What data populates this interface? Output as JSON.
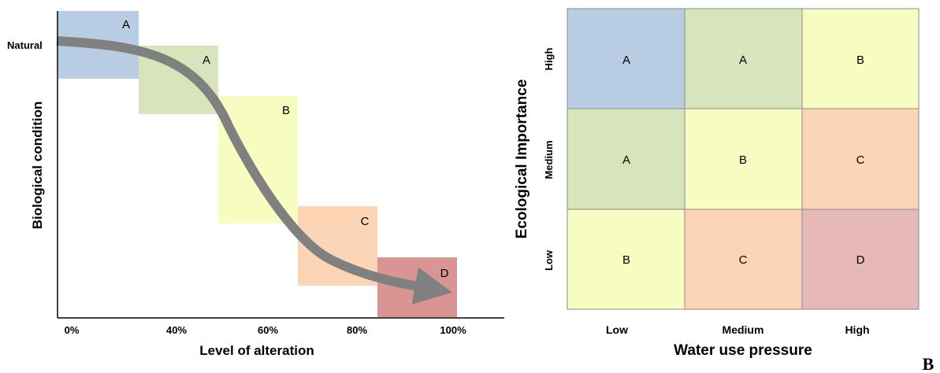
{
  "colors": {
    "A_dark": "#b8cce4",
    "A_light": "#d8e4bc",
    "B": "#f7fdc1",
    "C": "#fbd5b5",
    "D_curve": "#d99594",
    "D_matrix": "#e6b9b8",
    "arrow": "#808080",
    "grid": "#8c8c8c"
  },
  "left_panel": {
    "y_label": "Biological condition",
    "x_label": "Level of alteration",
    "natural_label": "Natural",
    "x_ticks": [
      "0%",
      "40%",
      "60%",
      "80%",
      "100%"
    ],
    "categories": [
      "A",
      "A",
      "B",
      "C",
      "D"
    ]
  },
  "right_panel": {
    "y_title": "Ecological Importance",
    "y_ticks": [
      "High",
      "Medium",
      "Low"
    ],
    "x_title": "Water use pressure",
    "x_ticks": [
      "Low",
      "Medium",
      "High"
    ],
    "cells": [
      [
        "A",
        "A",
        "B"
      ],
      [
        "A",
        "B",
        "C"
      ],
      [
        "B",
        "C",
        "D"
      ]
    ]
  },
  "panel_label": "B"
}
